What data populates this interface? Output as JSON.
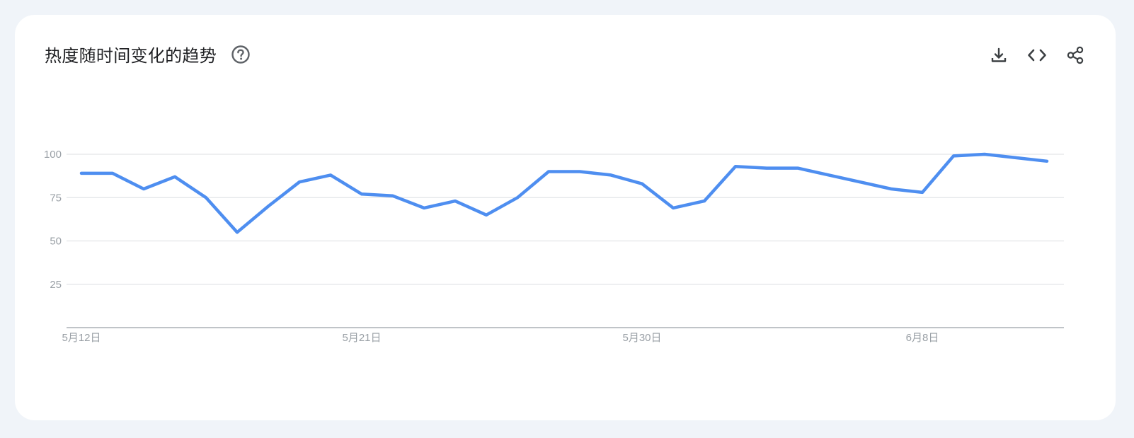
{
  "header": {
    "title": "热度随时间变化的趋势",
    "help_icon": "help-circle-icon"
  },
  "actions": [
    {
      "name": "download-button",
      "icon": "download-icon"
    },
    {
      "name": "embed-button",
      "icon": "code-icon"
    },
    {
      "name": "share-button",
      "icon": "share-icon"
    }
  ],
  "colors": {
    "line": "#4e8ef0",
    "grid": "#e3e5e8",
    "axis": "#9aa0a6",
    "title": "#202124",
    "icon": "#3c4043"
  },
  "chart_data": {
    "type": "line",
    "x": [
      "5月12日",
      "5月13日",
      "5月14日",
      "5月15日",
      "5月16日",
      "5月17日",
      "5月18日",
      "5月19日",
      "5月20日",
      "5月21日",
      "5月22日",
      "5月23日",
      "5月24日",
      "5月25日",
      "5月26日",
      "5月27日",
      "5月28日",
      "5月29日",
      "5月30日",
      "5月31日",
      "6月1日",
      "6月2日",
      "6月3日",
      "6月4日",
      "6月5日",
      "6月6日",
      "6月7日",
      "6月8日",
      "6月9日",
      "6月10日",
      "6月11日",
      "6月12日"
    ],
    "series": [
      {
        "values": [
          89,
          89,
          80,
          87,
          75,
          55,
          70,
          84,
          88,
          77,
          76,
          69,
          73,
          65,
          75,
          90,
          90,
          88,
          83,
          69,
          73,
          93,
          92,
          92,
          88,
          84,
          80,
          78,
          99,
          100,
          98,
          96
        ]
      }
    ],
    "x_tick_labels": [
      "5月12日",
      "5月21日",
      "5月30日",
      "6月8日"
    ],
    "x_tick_indices": [
      0,
      9,
      18,
      27
    ],
    "y_ticks": [
      25,
      50,
      75,
      100
    ],
    "ylim": [
      0,
      100
    ],
    "grid": true
  }
}
